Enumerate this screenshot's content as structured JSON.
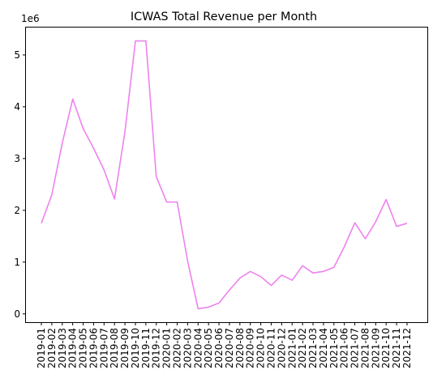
{
  "chart_data": {
    "type": "line",
    "title": "ICWAS Total Revenue per Month",
    "xlabel": "",
    "ylabel": "",
    "y_scale_label": "1e6",
    "x": [
      "2019-01",
      "2019-02",
      "2019-03",
      "2019-04",
      "2019-05",
      "2019-06",
      "2019-07",
      "2019-08",
      "2019-09",
      "2019-10",
      "2019-11",
      "2019-12",
      "2020-01",
      "2020-02",
      "2020-03",
      "2020-04",
      "2020-05",
      "2020-06",
      "2020-07",
      "2020-08",
      "2020-09",
      "2020-10",
      "2020-11",
      "2020-12",
      "2021-01",
      "2021-02",
      "2021-03",
      "2021-04",
      "2021-05",
      "2021-06",
      "2021-07",
      "2021-08",
      "2021-09",
      "2021-10",
      "2021-11",
      "2021-12"
    ],
    "series": [
      {
        "name": "",
        "values": [
          1.75,
          2.3,
          3.3,
          4.15,
          3.58,
          3.2,
          2.78,
          2.22,
          3.52,
          5.27,
          5.27,
          2.65,
          2.16,
          2.16,
          1.02,
          0.1,
          0.13,
          0.21,
          0.46,
          0.69,
          0.82,
          0.72,
          0.55,
          0.75,
          0.65,
          0.93,
          0.79,
          0.82,
          0.9,
          1.3,
          1.76,
          1.45,
          1.78,
          2.21,
          1.69,
          1.75
        ]
      }
    ],
    "y_ticks": [
      0,
      1,
      2,
      3,
      4,
      5
    ],
    "ylim": [
      -0.16,
      5.53
    ],
    "grid": false,
    "legend": "none",
    "line_color": "#ee82ee"
  }
}
